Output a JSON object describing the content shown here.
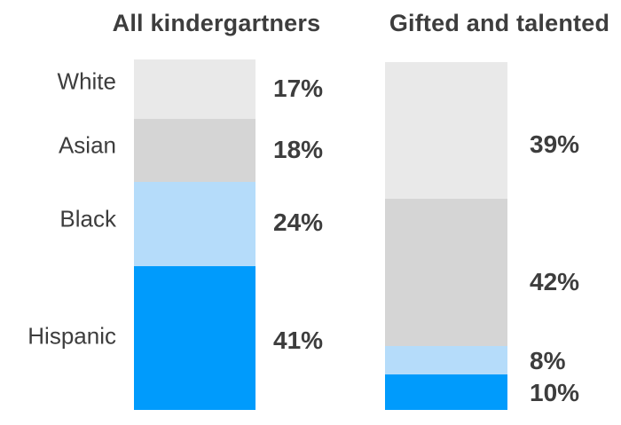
{
  "chart_data": {
    "type": "bar",
    "variant": "stacked-percentage-columns",
    "title": "",
    "categories": [
      "White",
      "Asian",
      "Black",
      "Hispanic"
    ],
    "series": [
      {
        "name": "All kindergartners",
        "values": [
          17,
          18,
          24,
          41
        ],
        "labels": [
          "17%",
          "18%",
          "24%",
          "41%"
        ]
      },
      {
        "name": "Gifted and talented",
        "values": [
          39,
          42,
          8,
          10
        ],
        "labels": [
          "39%",
          "42%",
          "8%",
          "10%"
        ]
      }
    ],
    "category_colors": {
      "White": "#e9e9e9",
      "Asian": "#d5d5d5",
      "Black": "#b5dcfa",
      "Hispanic": "#009bfc"
    },
    "text_color": "#3d3d3d",
    "background": "#ffffff",
    "unit": "%",
    "grid": false,
    "legend_position": "category-labels-left"
  }
}
